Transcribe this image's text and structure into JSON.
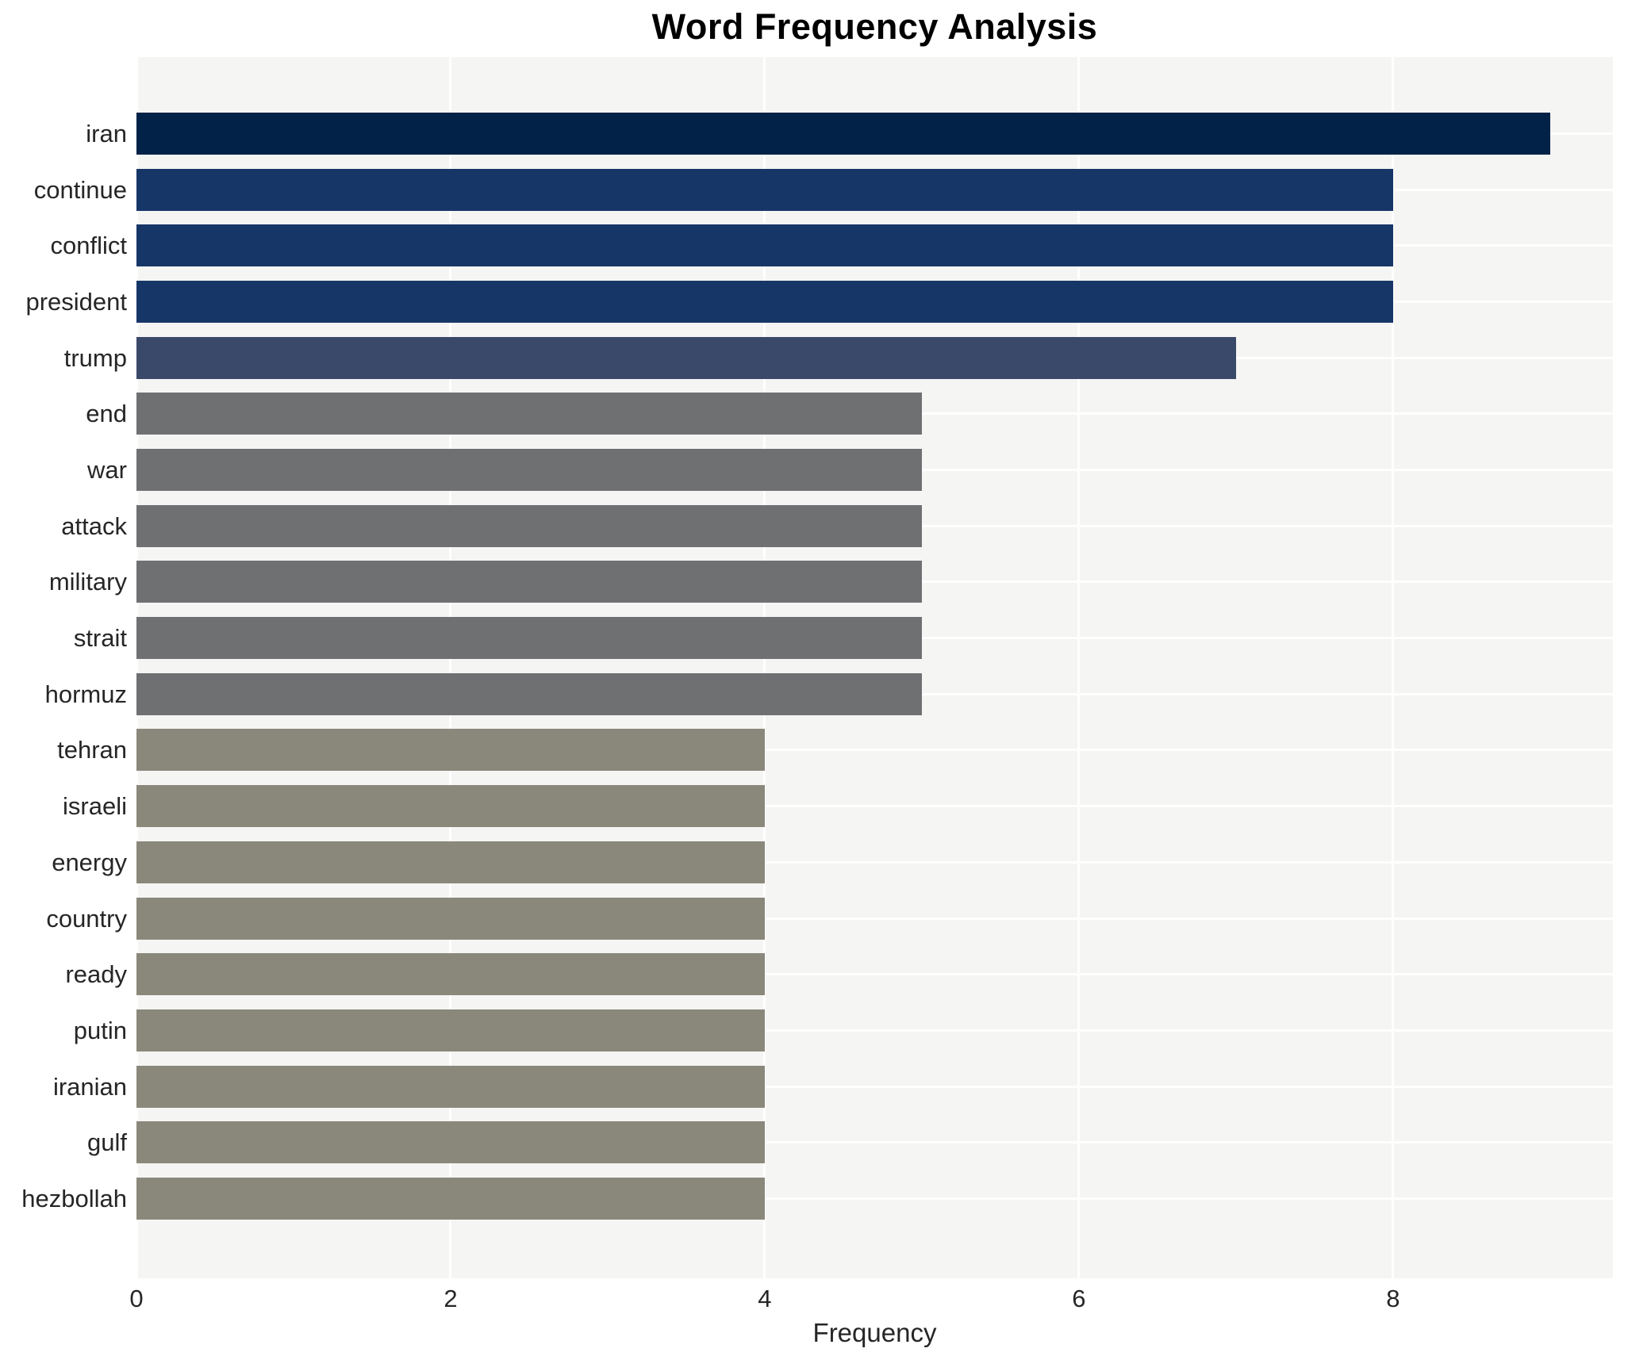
{
  "chart_data": {
    "type": "bar",
    "orientation": "horizontal",
    "title": "Word Frequency Analysis",
    "xlabel": "Frequency",
    "ylabel": "",
    "categories": [
      "iran",
      "continue",
      "conflict",
      "president",
      "trump",
      "end",
      "war",
      "attack",
      "military",
      "strait",
      "hormuz",
      "tehran",
      "israeli",
      "energy",
      "country",
      "ready",
      "putin",
      "iranian",
      "gulf",
      "hezbollah"
    ],
    "values": [
      9,
      8,
      8,
      8,
      7,
      5,
      5,
      5,
      5,
      5,
      5,
      4,
      4,
      4,
      4,
      4,
      4,
      4,
      4,
      4
    ],
    "bar_colors": [
      "#032247",
      "#173668",
      "#173668",
      "#173668",
      "#3a486a",
      "#6f7072",
      "#6f7072",
      "#6f7072",
      "#6f7072",
      "#6f7072",
      "#6f7072",
      "#8a887b",
      "#8a887b",
      "#8a887b",
      "#8a887b",
      "#8a887b",
      "#8a887b",
      "#8a887b",
      "#8a887b",
      "#8a887b"
    ],
    "xticks": [
      0,
      2,
      4,
      6,
      8
    ],
    "xlim": [
      0,
      9.4
    ],
    "grid": true,
    "legend": "none",
    "plot_bg_color": "#f5f5f3",
    "grid_color": "#ffffff",
    "text_color": "#262626",
    "title_color": "#000000"
  }
}
